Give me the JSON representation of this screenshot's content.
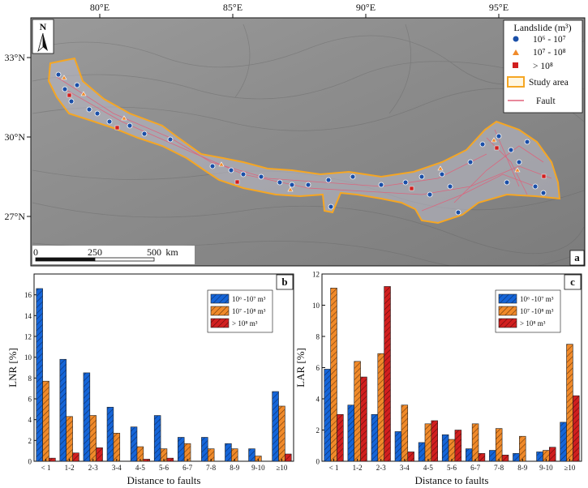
{
  "colors": {
    "blue": "#1565d8",
    "orange": "#f08a2a",
    "red": "#d11f1f",
    "study_area": "#f5a623",
    "fault": "#e0607a",
    "terrain": "#8d8d8d"
  },
  "map": {
    "panel_label": "a",
    "lon_labels": [
      "80°E",
      "85°E",
      "90°E",
      "95°E"
    ],
    "lat_labels": [
      "33°N",
      "30°N",
      "27°N"
    ],
    "north_label": "N",
    "scale_labels": [
      "0",
      "250",
      "500",
      "km"
    ],
    "legend": {
      "title": "Landslide (m³)",
      "items": [
        {
          "label": "10⁶ - 10⁷",
          "marker": "circle",
          "color": "#1a4fa8"
        },
        {
          "label": "10⁷ - 10⁸",
          "marker": "triangle",
          "color": "#f08a2a"
        },
        {
          "label": "> 10⁸",
          "marker": "square",
          "color": "#d11f1f"
        }
      ],
      "study_area_label": "Study area",
      "fault_label": "Fault"
    }
  },
  "chart_data": [
    {
      "panel": "b",
      "type": "bar",
      "categories": [
        "< 1",
        "1-2",
        "2-3",
        "3-4",
        "4-5",
        "5-6",
        "6-7",
        "7-8",
        "8-9",
        "9-10",
        "≥10"
      ],
      "series": [
        {
          "name": "10⁶ -10⁷ m³",
          "values": [
            16.6,
            9.8,
            8.5,
            5.2,
            3.3,
            4.4,
            2.3,
            2.3,
            1.7,
            1.2,
            6.7
          ]
        },
        {
          "name": "10⁷ -10⁸ m³",
          "values": [
            7.7,
            4.3,
            4.4,
            2.7,
            1.4,
            1.2,
            1.7,
            1.2,
            1.2,
            0.5,
            5.3
          ]
        },
        {
          "name": "> 10⁸ m³",
          "values": [
            0.3,
            0.8,
            1.3,
            0,
            0.2,
            0.3,
            0,
            0,
            0,
            0,
            0.7
          ]
        }
      ],
      "xlabel": "Distance to faults",
      "ylabel": "LNR [%]",
      "ylim": [
        0,
        18
      ],
      "yticks": [
        0,
        2,
        4,
        6,
        8,
        10,
        12,
        14,
        16
      ],
      "legend_position": "top-right"
    },
    {
      "panel": "c",
      "type": "bar",
      "categories": [
        "< 1",
        "1-2",
        "2-3",
        "3-4",
        "4-5",
        "5-6",
        "6-7",
        "7-8",
        "8-9",
        "9-10",
        "≥10"
      ],
      "series": [
        {
          "name": "10⁶ -10⁷ m³",
          "values": [
            5.9,
            3.6,
            3.0,
            1.9,
            1.2,
            1.7,
            0.8,
            0.7,
            0.5,
            0.6,
            2.5
          ]
        },
        {
          "name": "10⁷ -10⁸ m³",
          "values": [
            11.1,
            6.4,
            6.9,
            3.6,
            2.4,
            1.4,
            2.4,
            2.1,
            1.6,
            0.7,
            7.5
          ]
        },
        {
          "name": "> 10⁸ m³",
          "values": [
            3.0,
            5.4,
            11.2,
            0.6,
            2.6,
            2.0,
            0.5,
            0.4,
            0,
            0.9,
            4.2
          ]
        }
      ],
      "xlabel": "Distance to faults",
      "ylabel": "LAR [%]",
      "ylim": [
        0,
        12
      ],
      "yticks": [
        0,
        2,
        4,
        6,
        8,
        10,
        12
      ],
      "legend_position": "top-right"
    }
  ]
}
